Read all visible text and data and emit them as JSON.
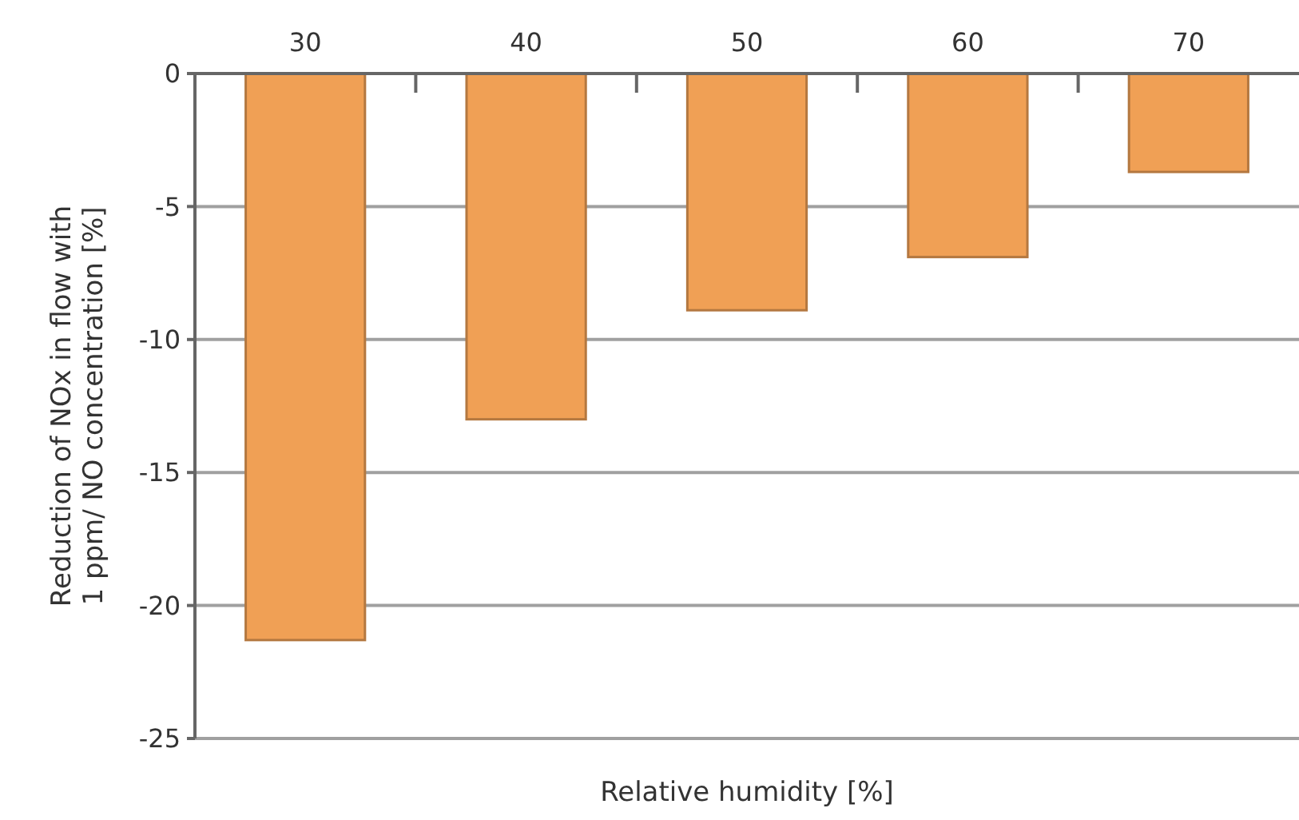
{
  "chart_data": {
    "type": "bar",
    "xlabel": "Relative humidity [%]",
    "ylabel": "Reduction of NOx in flow with 1 ppm/ NO concentration [%]",
    "categories": [
      "30",
      "40",
      "50",
      "60",
      "70"
    ],
    "values": [
      -21.3,
      -13,
      -8.9,
      -6.9,
      -3.7
    ],
    "color": "#f0a055",
    "ylim": [
      -25,
      0
    ],
    "yticks": [
      -25,
      -20,
      -15,
      -10,
      -5,
      0
    ],
    "grid": "y"
  }
}
